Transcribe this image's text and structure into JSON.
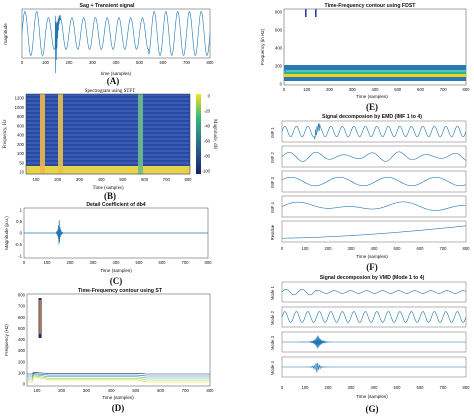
{
  "colors": {
    "signal": "#1f77b4",
    "contour_band": "#2a7ab8",
    "contour_yellow": "#f2d21b",
    "contour_teal": "#2bb3a0",
    "contour_dark": "#1a2a6c"
  },
  "panels": {
    "A": {
      "caption": "(A)",
      "title": "Sag + Transient signal",
      "xlabel": "time (samples)",
      "ylabel": "magnitude",
      "xticks": [
        "0",
        "100",
        "200",
        "300",
        "400",
        "500",
        "600",
        "700",
        "800"
      ]
    },
    "B": {
      "caption": "(B)",
      "title": "Spectrogram using STFT",
      "xlabel": "Time (samples)",
      "ylabel": "Frequency, Hz",
      "colorbar_label": "Magnitude, dB",
      "colorbar_ticks": [
        "0",
        "-20",
        "-40",
        "-60",
        "-80",
        "-100"
      ],
      "yticks": [
        "1200",
        "1000",
        "800",
        "600",
        "400",
        "200",
        "100",
        "50",
        "10"
      ],
      "xticks": [
        "100",
        "200",
        "300",
        "400",
        "500",
        "600",
        "700",
        "800"
      ]
    },
    "C": {
      "caption": "(C)",
      "title": "Detail Coefficient of db4",
      "xlabel": "Time (samples)",
      "ylabel": "Magnitude (p.u.)",
      "yticks": [
        "1",
        "0.5",
        "0",
        "-0.5",
        "-1"
      ],
      "xticks": [
        "0",
        "100",
        "200",
        "300",
        "400",
        "500",
        "600",
        "700",
        "800"
      ]
    },
    "D": {
      "caption": "(D)",
      "title": "Time-Frequency contour using ST",
      "xlabel": "Time (samples)",
      "ylabel": "Frequency (Hz)",
      "yticks": [
        "800",
        "700",
        "600",
        "500",
        "400",
        "300",
        "200",
        "100",
        "0"
      ],
      "xticks": [
        "100",
        "200",
        "300",
        "400",
        "500",
        "600",
        "700",
        "800"
      ]
    },
    "E": {
      "caption": "(E)",
      "title": "Time-Frequency contour using FDST",
      "xlabel": "Time (samples)",
      "ylabel": "Frequency (in Hz)",
      "yticks": [
        "800",
        "600",
        "400",
        "200",
        "0"
      ],
      "xticks": [
        "0",
        "100",
        "200",
        "300",
        "400",
        "500",
        "600",
        "700",
        "800"
      ]
    },
    "F": {
      "caption": "(F)",
      "title": "Signal decomposion by EMD (IMF 1 to 4)",
      "xlabel": "Time (samples)",
      "rows": [
        "IMF 1",
        "IMF 2",
        "IMF 3",
        "IMF 4",
        "Residue"
      ],
      "xticks": [
        "0",
        "100",
        "200",
        "300",
        "400",
        "500",
        "600",
        "700",
        "800"
      ]
    },
    "G": {
      "caption": "(G)",
      "title": "Signal decomposion by VMD (Mode 1 to 4)",
      "xlabel": "Time (samples)",
      "rows": [
        "Mode 1",
        "Mode 2",
        "Mode 3",
        "Mode 4"
      ],
      "xticks": [
        "0",
        "100",
        "200",
        "300",
        "400",
        "500",
        "600",
        "700",
        "800"
      ]
    }
  },
  "chart_data": [
    {
      "type": "line",
      "title": "Sag + Transient signal",
      "xlabel": "time (samples)",
      "ylabel": "magnitude",
      "xlim": [
        0,
        800
      ],
      "ylim": [
        -1,
        1
      ],
      "description_of_values": "sinusoid, 16 cycles over 800 samples, sag 100-540, transient near 150"
    },
    {
      "type": "heatmap",
      "title": "Spectrogram using STFT",
      "xlabel": "Time (samples)",
      "ylabel": "Frequency, Hz",
      "xlim": [
        100,
        800
      ],
      "clim": [
        -100,
        0
      ],
      "high_energy_columns": [
        130,
        180,
        540
      ]
    },
    {
      "type": "line",
      "title": "Detail Coefficient of db4",
      "xlabel": "Time (samples)",
      "ylabel": "Magnitude (p.u.)",
      "xlim": [
        0,
        800
      ],
      "ylim": [
        -1,
        1
      ],
      "spike_x": [
        150,
        160
      ]
    },
    {
      "type": "heatmap",
      "title": "Time-Frequency contour using ST",
      "xlabel": "Time (samples)",
      "ylabel": "Frequency (Hz)",
      "xlim": [
        100,
        800
      ],
      "ylim": [
        0,
        800
      ],
      "spike_x": [
        150
      ]
    },
    {
      "type": "heatmap",
      "title": "Time-Frequency contour using FDST",
      "xlabel": "Time (samples)",
      "ylabel": "Frequency (in Hz)",
      "xlim": [
        0,
        800
      ],
      "ylim": [
        0,
        800
      ],
      "spike_x": [
        100,
        150
      ]
    },
    {
      "type": "line",
      "title": "Signal decomposion by EMD (IMF 1 to 4)",
      "xlabel": "Time (samples)",
      "series": [
        {
          "name": "IMF 1"
        },
        {
          "name": "IMF 2"
        },
        {
          "name": "IMF 3"
        },
        {
          "name": "IMF 4"
        },
        {
          "name": "Residue"
        }
      ],
      "xlim": [
        0,
        800
      ]
    },
    {
      "type": "line",
      "title": "Signal decomposion by VMD (Mode 1 to 4)",
      "xlabel": "Time (samples)",
      "series": [
        {
          "name": "Mode 1"
        },
        {
          "name": "Mode 2"
        },
        {
          "name": "Mode 3"
        },
        {
          "name": "Mode 4"
        }
      ],
      "xlim": [
        0,
        800
      ]
    }
  ]
}
